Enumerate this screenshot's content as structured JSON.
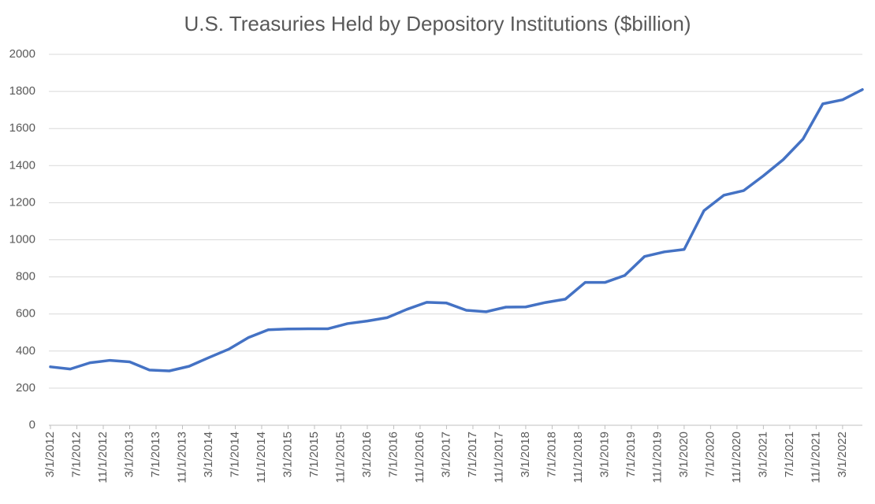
{
  "chart_data": {
    "type": "line",
    "title": "U.S. Treasuries Held by Depository Institutions ($billion)",
    "x": [
      "3/1/2012",
      "6/1/2012",
      "9/1/2012",
      "12/1/2012",
      "3/1/2013",
      "6/1/2013",
      "9/1/2013",
      "12/1/2013",
      "3/1/2014",
      "6/1/2014",
      "9/1/2014",
      "12/1/2014",
      "3/1/2015",
      "6/1/2015",
      "9/1/2015",
      "12/1/2015",
      "3/1/2016",
      "6/1/2016",
      "9/1/2016",
      "12/1/2016",
      "3/1/2017",
      "6/1/2017",
      "9/1/2017",
      "12/1/2017",
      "3/1/2018",
      "6/1/2018",
      "9/1/2018",
      "12/1/2018",
      "3/1/2019",
      "6/1/2019",
      "9/1/2019",
      "12/1/2019",
      "3/1/2020",
      "6/1/2020",
      "9/1/2020",
      "12/1/2020",
      "3/1/2021",
      "6/1/2021",
      "9/1/2021",
      "12/1/2021",
      "3/1/2022",
      "6/1/2022"
    ],
    "series": [
      {
        "name": "U.S. Treasuries",
        "color": "#4472c4",
        "values": [
          315,
          303,
          337,
          350,
          342,
          298,
          293,
          318,
          365,
          410,
          473,
          515,
          519,
          520,
          520,
          548,
          562,
          580,
          625,
          663,
          659,
          620,
          612,
          637,
          638,
          662,
          680,
          770,
          770,
          808,
          910,
          935,
          948,
          1157,
          1240,
          1265,
          1345,
          1432,
          1543,
          1733,
          1755,
          1810
        ]
      }
    ],
    "xlim": [
      "3/1/2012",
      "6/1/2022"
    ],
    "xticks": [
      "3/1/2012",
      "7/1/2012",
      "11/1/2012",
      "3/1/2013",
      "7/1/2013",
      "11/1/2013",
      "3/1/2014",
      "7/1/2014",
      "11/1/2014",
      "3/1/2015",
      "7/1/2015",
      "11/1/2015",
      "3/1/2016",
      "7/1/2016",
      "11/1/2016",
      "3/1/2017",
      "7/1/2017",
      "11/1/2017",
      "3/1/2018",
      "7/1/2018",
      "11/1/2018",
      "3/1/2019",
      "7/1/2019",
      "11/1/2019",
      "3/1/2020",
      "7/1/2020",
      "11/1/2020",
      "3/1/2021",
      "7/1/2021",
      "11/1/2021",
      "3/1/2022"
    ],
    "ylim": [
      0,
      2000
    ],
    "yticks": [
      0,
      200,
      400,
      600,
      800,
      1000,
      1200,
      1400,
      1600,
      1800,
      2000
    ],
    "grid": true
  }
}
